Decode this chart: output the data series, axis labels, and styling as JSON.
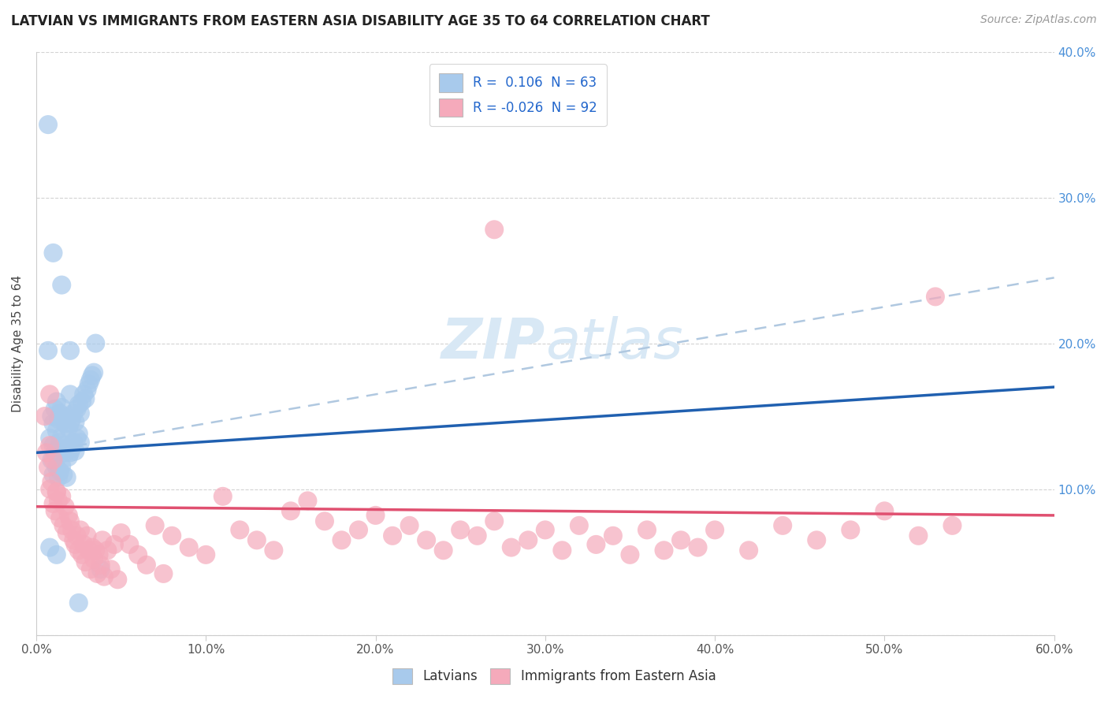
{
  "title": "LATVIAN VS IMMIGRANTS FROM EASTERN ASIA DISABILITY AGE 35 TO 64 CORRELATION CHART",
  "source": "Source: ZipAtlas.com",
  "xlabel": "",
  "ylabel": "Disability Age 35 to 64",
  "xlim": [
    0.0,
    0.6
  ],
  "ylim": [
    0.0,
    0.4
  ],
  "xticks": [
    0.0,
    0.1,
    0.2,
    0.3,
    0.4,
    0.5,
    0.6
  ],
  "yticks": [
    0.0,
    0.1,
    0.2,
    0.3,
    0.4
  ],
  "xtick_labels": [
    "0.0%",
    "10.0%",
    "20.0%",
    "30.0%",
    "40.0%",
    "50.0%",
    "60.0%"
  ],
  "ytick_labels_right": [
    "",
    "10.0%",
    "20.0%",
    "30.0%",
    "40.0%"
  ],
  "legend_blue_r": "R =  0.106",
  "legend_blue_n": "N = 63",
  "legend_pink_r": "R = -0.026",
  "legend_pink_n": "N = 92",
  "blue_color": "#A8CAEC",
  "pink_color": "#F5AABB",
  "blue_line_color": "#2060B0",
  "pink_line_color": "#E05070",
  "dashed_line_color": "#B0C8E0",
  "watermark_color": "#D8E8F5",
  "background_color": "#FFFFFF",
  "blue_line_x": [
    0.0,
    0.6
  ],
  "blue_line_y": [
    0.125,
    0.17
  ],
  "pink_line_x": [
    0.0,
    0.6
  ],
  "pink_line_y": [
    0.088,
    0.082
  ],
  "dashed_line_x": [
    0.0,
    0.6
  ],
  "dashed_line_y": [
    0.125,
    0.245
  ],
  "latvians_x": [
    0.007,
    0.007,
    0.008,
    0.009,
    0.009,
    0.01,
    0.01,
    0.01,
    0.011,
    0.011,
    0.012,
    0.012,
    0.012,
    0.013,
    0.013,
    0.013,
    0.014,
    0.014,
    0.014,
    0.015,
    0.015,
    0.015,
    0.016,
    0.016,
    0.016,
    0.017,
    0.017,
    0.018,
    0.018,
    0.018,
    0.019,
    0.019,
    0.02,
    0.02,
    0.02,
    0.021,
    0.021,
    0.022,
    0.022,
    0.023,
    0.023,
    0.024,
    0.024,
    0.025,
    0.025,
    0.026,
    0.026,
    0.027,
    0.028,
    0.029,
    0.03,
    0.031,
    0.032,
    0.033,
    0.034,
    0.035,
    0.02,
    0.015,
    0.01,
    0.008,
    0.012,
    0.038,
    0.025
  ],
  "latvians_y": [
    0.35,
    0.195,
    0.135,
    0.15,
    0.12,
    0.145,
    0.13,
    0.11,
    0.155,
    0.125,
    0.16,
    0.14,
    0.115,
    0.148,
    0.128,
    0.108,
    0.152,
    0.132,
    0.112,
    0.156,
    0.136,
    0.116,
    0.15,
    0.13,
    0.11,
    0.145,
    0.125,
    0.148,
    0.128,
    0.108,
    0.142,
    0.122,
    0.165,
    0.145,
    0.125,
    0.148,
    0.128,
    0.152,
    0.132,
    0.146,
    0.126,
    0.155,
    0.135,
    0.158,
    0.138,
    0.152,
    0.132,
    0.16,
    0.165,
    0.162,
    0.168,
    0.172,
    0.175,
    0.178,
    0.18,
    0.2,
    0.195,
    0.24,
    0.262,
    0.06,
    0.055,
    0.045,
    0.022
  ],
  "immigrants_x": [
    0.005,
    0.006,
    0.007,
    0.008,
    0.008,
    0.009,
    0.01,
    0.01,
    0.011,
    0.012,
    0.013,
    0.014,
    0.015,
    0.016,
    0.017,
    0.018,
    0.019,
    0.02,
    0.021,
    0.022,
    0.023,
    0.024,
    0.025,
    0.026,
    0.027,
    0.028,
    0.029,
    0.03,
    0.031,
    0.032,
    0.033,
    0.034,
    0.035,
    0.036,
    0.037,
    0.038,
    0.039,
    0.04,
    0.042,
    0.044,
    0.046,
    0.048,
    0.05,
    0.055,
    0.06,
    0.065,
    0.07,
    0.075,
    0.08,
    0.09,
    0.1,
    0.11,
    0.12,
    0.13,
    0.14,
    0.15,
    0.16,
    0.17,
    0.18,
    0.19,
    0.2,
    0.21,
    0.22,
    0.23,
    0.24,
    0.25,
    0.26,
    0.27,
    0.28,
    0.29,
    0.3,
    0.31,
    0.32,
    0.33,
    0.34,
    0.35,
    0.36,
    0.37,
    0.38,
    0.39,
    0.4,
    0.42,
    0.44,
    0.46,
    0.48,
    0.5,
    0.52,
    0.54,
    0.008,
    0.012,
    0.27,
    0.53
  ],
  "immigrants_y": [
    0.15,
    0.125,
    0.115,
    0.1,
    0.13,
    0.105,
    0.09,
    0.12,
    0.085,
    0.098,
    0.092,
    0.08,
    0.095,
    0.075,
    0.088,
    0.07,
    0.082,
    0.078,
    0.072,
    0.065,
    0.062,
    0.068,
    0.058,
    0.072,
    0.055,
    0.062,
    0.05,
    0.068,
    0.058,
    0.045,
    0.06,
    0.052,
    0.058,
    0.042,
    0.055,
    0.048,
    0.065,
    0.04,
    0.058,
    0.045,
    0.062,
    0.038,
    0.07,
    0.062,
    0.055,
    0.048,
    0.075,
    0.042,
    0.068,
    0.06,
    0.055,
    0.095,
    0.072,
    0.065,
    0.058,
    0.085,
    0.092,
    0.078,
    0.065,
    0.072,
    0.082,
    0.068,
    0.075,
    0.065,
    0.058,
    0.072,
    0.068,
    0.078,
    0.06,
    0.065,
    0.072,
    0.058,
    0.075,
    0.062,
    0.068,
    0.055,
    0.072,
    0.058,
    0.065,
    0.06,
    0.072,
    0.058,
    0.075,
    0.065,
    0.072,
    0.085,
    0.068,
    0.075,
    0.165,
    0.098,
    0.278,
    0.232
  ]
}
